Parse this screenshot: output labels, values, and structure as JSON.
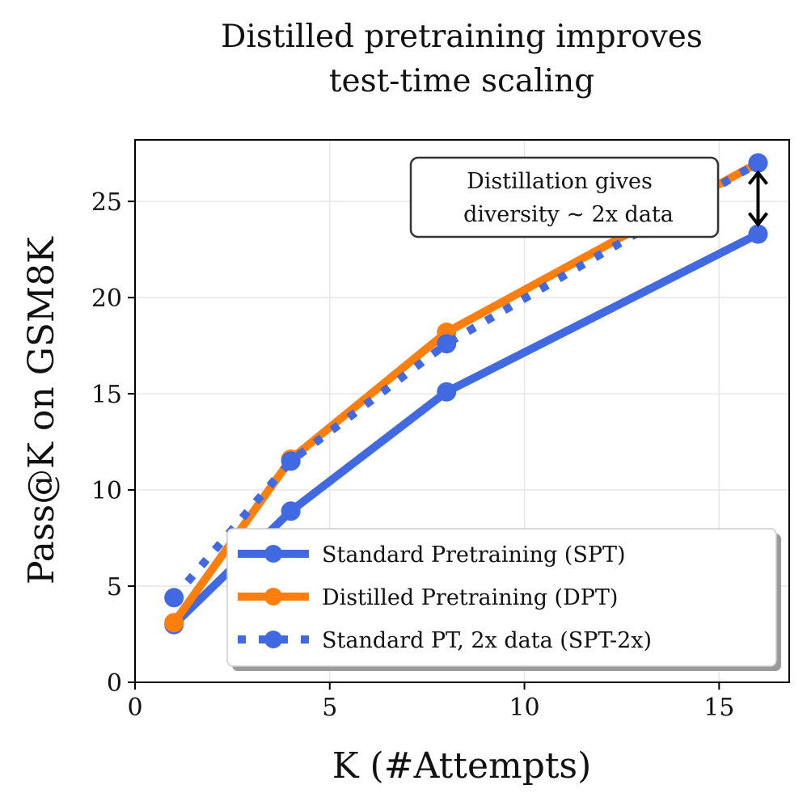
{
  "chart_data": {
    "type": "line",
    "title_lines": [
      "Distilled pretraining improves",
      "test-time scaling"
    ],
    "xlabel": "K (#Attempts)",
    "ylabel": "Pass@K on GSM8K",
    "xlim": [
      0,
      16.8
    ],
    "ylim": [
      0,
      28.2
    ],
    "xticks": [
      0,
      5,
      10,
      15
    ],
    "yticks": [
      0,
      5,
      10,
      15,
      20,
      25
    ],
    "grid": true,
    "x": [
      1,
      4,
      8,
      16
    ],
    "series": [
      {
        "name": "Standard Pretraining (SPT)",
        "values": [
          3.0,
          8.9,
          15.1,
          23.3
        ],
        "color": "#4169E1",
        "style": "solid"
      },
      {
        "name": "Distilled Pretraining (DPT)",
        "values": [
          3.1,
          11.6,
          18.2,
          27.0
        ],
        "color": "#FF7F0E",
        "style": "solid"
      },
      {
        "name": "Standard PT, 2x data (SPT-2x)",
        "values": [
          4.4,
          11.5,
          17.6,
          27.0
        ],
        "color": "#4169E1",
        "style": "dotted"
      }
    ],
    "legend_position": "lower-right",
    "annotation": {
      "lines": [
        "Distillation gives",
        "diversity ~ 2x data"
      ],
      "arrow_x": 16,
      "arrow_from": 23.3,
      "arrow_to": 27.0
    }
  }
}
